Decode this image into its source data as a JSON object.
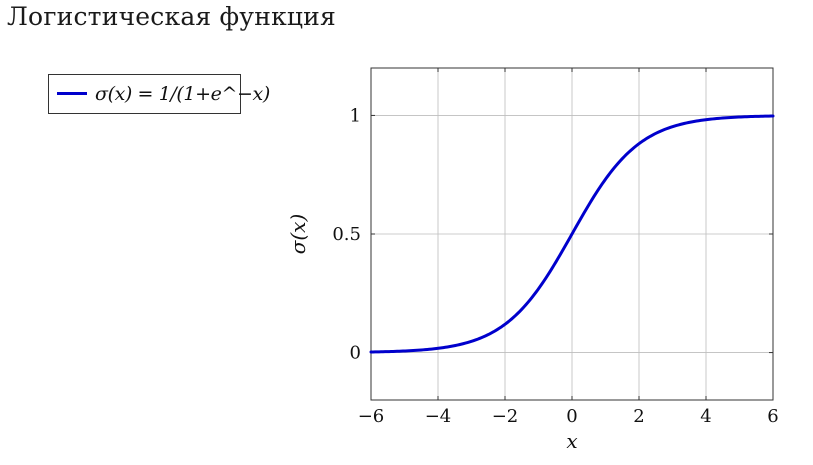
{
  "page": {
    "title": "Логистическая функция"
  },
  "chart_data": {
    "type": "line",
    "title": "",
    "xlabel": "x",
    "ylabel": "σ(x)",
    "xlim": [
      -6,
      6
    ],
    "ylim": [
      -0.2,
      1.2
    ],
    "xticks": [
      -6,
      -4,
      -2,
      0,
      2,
      4,
      6
    ],
    "xtick_labels": [
      "−6",
      "−4",
      "−2",
      "0",
      "2",
      "4",
      "6"
    ],
    "yticks": [
      0,
      0.5,
      1
    ],
    "ytick_labels": [
      "0",
      "0.5",
      "1"
    ],
    "grid": true,
    "legend_position": "left, outside plot area",
    "colors": {
      "series": "#0000cc",
      "grid": "#bdbdbd",
      "frame": "#333333"
    },
    "series": [
      {
        "name": "σ(x) = 1/(1+e^−x)",
        "color": "#0000cc",
        "x": [
          -6,
          -5.5,
          -5,
          -4.5,
          -4,
          -3.5,
          -3,
          -2.5,
          -2,
          -1.5,
          -1,
          -0.5,
          0,
          0.5,
          1,
          1.5,
          2,
          2.5,
          3,
          3.5,
          4,
          4.5,
          5,
          5.5,
          6
        ],
        "y": [
          0.0025,
          0.0041,
          0.0067,
          0.011,
          0.018,
          0.029,
          0.047,
          0.076,
          0.119,
          0.182,
          0.269,
          0.378,
          0.5,
          0.622,
          0.731,
          0.818,
          0.881,
          0.924,
          0.953,
          0.971,
          0.982,
          0.989,
          0.9933,
          0.9959,
          0.9975
        ]
      }
    ]
  }
}
